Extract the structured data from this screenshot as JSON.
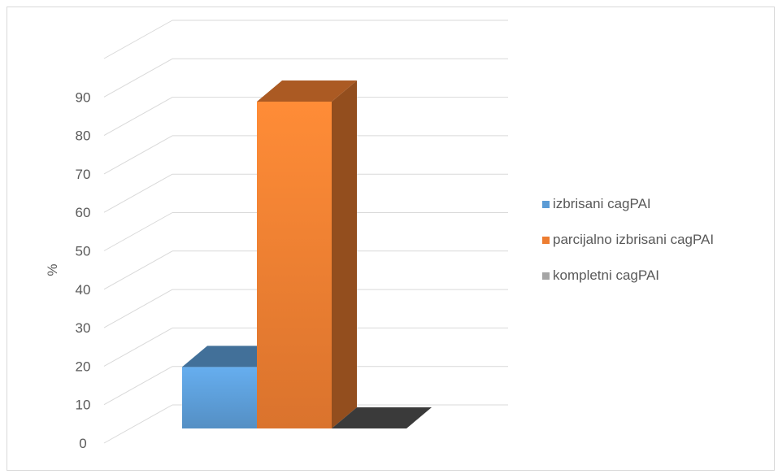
{
  "chart_data": {
    "type": "bar",
    "style": "3d-clustered-column",
    "categories": [
      ""
    ],
    "series": [
      {
        "name": "izbrisani cagPAI",
        "values": [
          16
        ],
        "color": "#5b9bd5"
      },
      {
        "name": "parcijalno izbrisani cagPAI",
        "values": [
          85
        ],
        "color": "#ed7d31"
      },
      {
        "name": "kompletni cagPAI",
        "values": [
          0
        ],
        "color": "#a5a5a5"
      }
    ],
    "title": "",
    "xlabel": "",
    "ylabel": "%",
    "ylim": [
      0,
      90
    ],
    "yticks": [
      "0",
      "10",
      "20",
      "30",
      "40",
      "50",
      "60",
      "70",
      "80",
      "90"
    ],
    "grid": true,
    "legend_position": "right"
  }
}
